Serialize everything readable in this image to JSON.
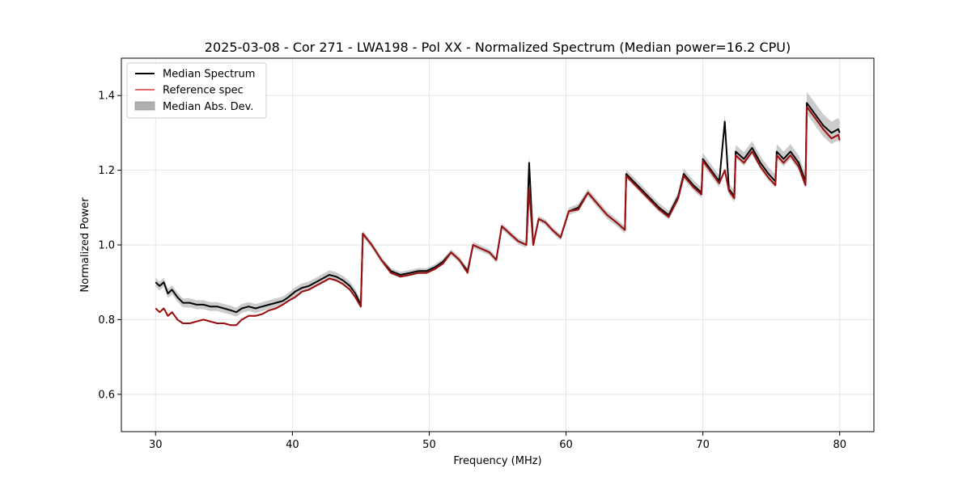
{
  "chart_data": {
    "type": "line",
    "title": "2025-03-08 - Cor 271 - LWA198 - Pol XX - Normalized Spectrum (Median power=16.2 CPU)",
    "xlabel": "Frequency (MHz)",
    "ylabel": "Normalized Power",
    "xlim": [
      27.5,
      82.5
    ],
    "ylim": [
      0.5,
      1.5
    ],
    "xticks": [
      30,
      40,
      50,
      60,
      70,
      80
    ],
    "yticks": [
      0.6,
      0.8,
      1.0,
      1.2,
      1.4
    ],
    "xtick_labels": [
      "30",
      "40",
      "50",
      "60",
      "70",
      "80"
    ],
    "ytick_labels": [
      "0.6",
      "0.8",
      "1.0",
      "1.2",
      "1.4"
    ],
    "grid": true,
    "legend_position": "top-left",
    "colors": {
      "median": "#000000",
      "reference": "#e8696b",
      "mad_band": "#b0b0b0",
      "overlap": "#8b0000"
    },
    "series": [
      {
        "name": "Median Spectrum",
        "x": [
          30.0,
          30.3,
          30.6,
          30.9,
          31.2,
          31.6,
          32.0,
          32.5,
          33.0,
          33.5,
          34.0,
          34.5,
          35.0,
          35.5,
          35.9,
          36.3,
          36.8,
          37.3,
          37.8,
          38.3,
          38.8,
          39.3,
          39.7,
          40.2,
          40.7,
          41.2,
          41.7,
          42.2,
          42.7,
          43.2,
          43.7,
          44.2,
          44.6,
          45.0,
          45.15,
          45.8,
          46.5,
          47.2,
          47.9,
          48.6,
          49.2,
          49.8,
          50.4,
          51.0,
          51.6,
          52.2,
          52.8,
          53.2,
          53.8,
          54.4,
          54.9,
          55.3,
          55.9,
          56.5,
          57.1,
          57.3,
          57.6,
          58.0,
          58.5,
          59.0,
          59.6,
          60.2,
          60.9,
          61.6,
          62.3,
          63.0,
          63.7,
          64.3,
          64.4,
          65.2,
          66.0,
          66.8,
          67.5,
          68.2,
          68.6,
          69.3,
          69.9,
          70.0,
          70.6,
          71.2,
          71.6,
          71.9,
          72.3,
          72.4,
          73.0,
          73.6,
          74.2,
          74.8,
          75.3,
          75.4,
          75.9,
          76.4,
          77.0,
          77.5,
          77.6,
          78.2,
          78.8,
          79.4,
          79.9,
          80.0
        ],
        "values": [
          0.9,
          0.89,
          0.9,
          0.87,
          0.88,
          0.86,
          0.845,
          0.845,
          0.84,
          0.84,
          0.835,
          0.835,
          0.83,
          0.825,
          0.82,
          0.83,
          0.835,
          0.83,
          0.835,
          0.84,
          0.845,
          0.85,
          0.86,
          0.875,
          0.885,
          0.89,
          0.9,
          0.91,
          0.92,
          0.915,
          0.905,
          0.89,
          0.87,
          0.84,
          1.03,
          1.0,
          0.96,
          0.93,
          0.92,
          0.925,
          0.93,
          0.93,
          0.94,
          0.955,
          0.98,
          0.96,
          0.93,
          1.0,
          0.99,
          0.98,
          0.96,
          1.05,
          1.03,
          1.01,
          1.0,
          1.22,
          1.0,
          1.07,
          1.06,
          1.04,
          1.02,
          1.09,
          1.1,
          1.14,
          1.11,
          1.08,
          1.06,
          1.04,
          1.19,
          1.16,
          1.13,
          1.1,
          1.08,
          1.13,
          1.19,
          1.16,
          1.14,
          1.23,
          1.2,
          1.17,
          1.33,
          1.15,
          1.13,
          1.25,
          1.23,
          1.26,
          1.22,
          1.19,
          1.17,
          1.25,
          1.23,
          1.25,
          1.22,
          1.17,
          1.38,
          1.35,
          1.32,
          1.3,
          1.31,
          1.3
        ]
      },
      {
        "name": "Reference spec",
        "x": [
          30.0,
          30.3,
          30.6,
          30.9,
          31.2,
          31.6,
          32.0,
          32.5,
          33.0,
          33.5,
          34.0,
          34.5,
          35.0,
          35.5,
          35.9,
          36.3,
          36.8,
          37.3,
          37.8,
          38.3,
          38.8,
          39.3,
          39.7,
          40.2,
          40.7,
          41.2,
          41.7,
          42.2,
          42.7,
          43.2,
          43.7,
          44.2,
          44.6,
          45.0,
          45.15,
          45.8,
          46.5,
          47.2,
          47.9,
          48.6,
          49.2,
          49.8,
          50.4,
          51.0,
          51.6,
          52.2,
          52.8,
          53.2,
          53.8,
          54.4,
          54.9,
          55.3,
          55.9,
          56.5,
          57.1,
          57.3,
          57.6,
          58.0,
          58.5,
          59.0,
          59.6,
          60.2,
          60.9,
          61.6,
          62.3,
          63.0,
          63.7,
          64.3,
          64.4,
          65.2,
          66.0,
          66.8,
          67.5,
          68.2,
          68.6,
          69.3,
          69.9,
          70.0,
          70.6,
          71.2,
          71.6,
          71.9,
          72.3,
          72.4,
          73.0,
          73.6,
          74.2,
          74.8,
          75.3,
          75.4,
          75.9,
          76.4,
          77.0,
          77.5,
          77.6,
          78.2,
          78.8,
          79.4,
          79.9,
          80.0
        ],
        "values": [
          0.83,
          0.82,
          0.83,
          0.81,
          0.82,
          0.8,
          0.79,
          0.79,
          0.795,
          0.8,
          0.795,
          0.79,
          0.79,
          0.785,
          0.785,
          0.8,
          0.81,
          0.81,
          0.815,
          0.825,
          0.83,
          0.84,
          0.85,
          0.86,
          0.875,
          0.88,
          0.89,
          0.9,
          0.91,
          0.905,
          0.895,
          0.88,
          0.86,
          0.835,
          1.03,
          1.0,
          0.96,
          0.925,
          0.915,
          0.92,
          0.925,
          0.925,
          0.935,
          0.95,
          0.98,
          0.96,
          0.925,
          1.0,
          0.99,
          0.98,
          0.96,
          1.05,
          1.03,
          1.01,
          1.0,
          1.15,
          1.0,
          1.07,
          1.06,
          1.04,
          1.02,
          1.09,
          1.095,
          1.14,
          1.11,
          1.08,
          1.06,
          1.04,
          1.185,
          1.155,
          1.125,
          1.095,
          1.075,
          1.125,
          1.185,
          1.155,
          1.135,
          1.225,
          1.195,
          1.165,
          1.2,
          1.145,
          1.125,
          1.24,
          1.22,
          1.25,
          1.21,
          1.18,
          1.16,
          1.24,
          1.22,
          1.24,
          1.21,
          1.16,
          1.37,
          1.34,
          1.31,
          1.285,
          1.295,
          1.28
        ]
      },
      {
        "name": "Median Abs. Dev.",
        "half_width": [
          0.012,
          0.012,
          0.012,
          0.012,
          0.012,
          0.012,
          0.012,
          0.012,
          0.012,
          0.012,
          0.012,
          0.012,
          0.012,
          0.012,
          0.012,
          0.012,
          0.012,
          0.012,
          0.012,
          0.012,
          0.012,
          0.012,
          0.012,
          0.012,
          0.012,
          0.012,
          0.012,
          0.012,
          0.012,
          0.012,
          0.012,
          0.012,
          0.012,
          0.012,
          0.008,
          0.008,
          0.008,
          0.008,
          0.008,
          0.008,
          0.008,
          0.008,
          0.008,
          0.008,
          0.008,
          0.008,
          0.008,
          0.008,
          0.008,
          0.008,
          0.008,
          0.008,
          0.008,
          0.008,
          0.008,
          0.02,
          0.008,
          0.008,
          0.008,
          0.008,
          0.008,
          0.01,
          0.01,
          0.01,
          0.01,
          0.01,
          0.01,
          0.01,
          0.012,
          0.012,
          0.012,
          0.012,
          0.012,
          0.012,
          0.014,
          0.014,
          0.014,
          0.016,
          0.016,
          0.016,
          0.02,
          0.016,
          0.016,
          0.018,
          0.018,
          0.018,
          0.018,
          0.018,
          0.018,
          0.02,
          0.02,
          0.02,
          0.02,
          0.02,
          0.03,
          0.03,
          0.03,
          0.03,
          0.03,
          0.03
        ]
      }
    ],
    "legend": [
      "Median Spectrum",
      "Reference spec",
      "Median Abs. Dev."
    ]
  }
}
